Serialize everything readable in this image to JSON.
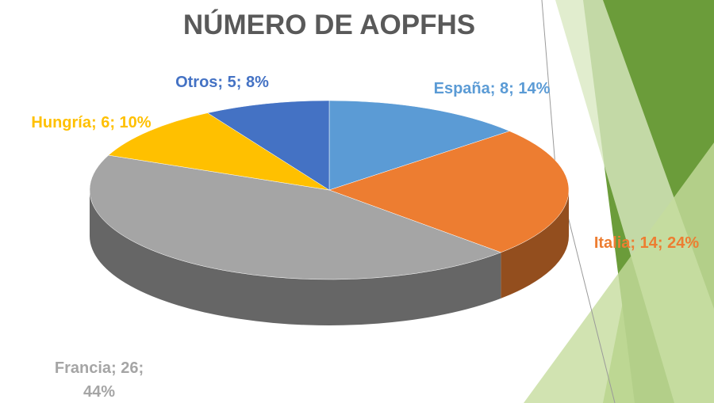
{
  "chart_data": {
    "type": "pie",
    "title": "NÚMERO DE AOPFHS",
    "categories": [
      "España",
      "Italia",
      "Francia",
      "Hungría",
      "Otros"
    ],
    "values": [
      8,
      14,
      26,
      6,
      5
    ],
    "value_labels": [
      "España; 8; 14%",
      "Italia; 14; 24%",
      "Francia; 26; 44%",
      "Hungría; 6; 10%",
      "Otros; 5; 8%"
    ],
    "colors": [
      "#5b9bd5",
      "#ed7d31",
      "#a5a5a5",
      "#ffc000",
      "#4472c4"
    ]
  }
}
